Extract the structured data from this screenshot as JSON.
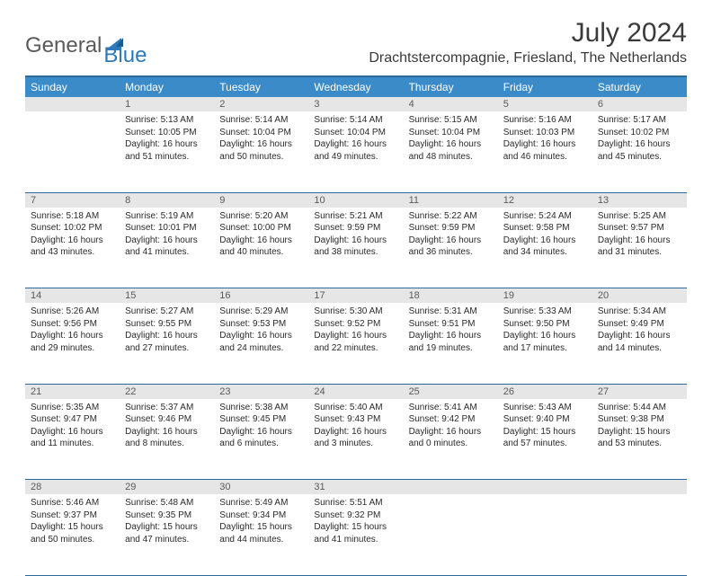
{
  "logo": {
    "text1": "General",
    "text2": "Blue"
  },
  "title": "July 2024",
  "location": "Drachtstercompagnie, Friesland, The Netherlands",
  "colors": {
    "header_bg": "#3b8bc9",
    "header_border": "#2d6a9a",
    "daynum_bg": "#e6e6e6",
    "text": "#2a2a2a",
    "logo_gray": "#5a5a5a",
    "logo_blue": "#2d79b9"
  },
  "weekdays": [
    "Sunday",
    "Monday",
    "Tuesday",
    "Wednesday",
    "Thursday",
    "Friday",
    "Saturday"
  ],
  "weeks": [
    {
      "nums": [
        "",
        "1",
        "2",
        "3",
        "4",
        "5",
        "6"
      ],
      "cells": [
        null,
        {
          "sunrise": "5:13 AM",
          "sunset": "10:05 PM",
          "daylight": "16 hours and 51 minutes."
        },
        {
          "sunrise": "5:14 AM",
          "sunset": "10:04 PM",
          "daylight": "16 hours and 50 minutes."
        },
        {
          "sunrise": "5:14 AM",
          "sunset": "10:04 PM",
          "daylight": "16 hours and 49 minutes."
        },
        {
          "sunrise": "5:15 AM",
          "sunset": "10:04 PM",
          "daylight": "16 hours and 48 minutes."
        },
        {
          "sunrise": "5:16 AM",
          "sunset": "10:03 PM",
          "daylight": "16 hours and 46 minutes."
        },
        {
          "sunrise": "5:17 AM",
          "sunset": "10:02 PM",
          "daylight": "16 hours and 45 minutes."
        }
      ]
    },
    {
      "nums": [
        "7",
        "8",
        "9",
        "10",
        "11",
        "12",
        "13"
      ],
      "cells": [
        {
          "sunrise": "5:18 AM",
          "sunset": "10:02 PM",
          "daylight": "16 hours and 43 minutes."
        },
        {
          "sunrise": "5:19 AM",
          "sunset": "10:01 PM",
          "daylight": "16 hours and 41 minutes."
        },
        {
          "sunrise": "5:20 AM",
          "sunset": "10:00 PM",
          "daylight": "16 hours and 40 minutes."
        },
        {
          "sunrise": "5:21 AM",
          "sunset": "9:59 PM",
          "daylight": "16 hours and 38 minutes."
        },
        {
          "sunrise": "5:22 AM",
          "sunset": "9:59 PM",
          "daylight": "16 hours and 36 minutes."
        },
        {
          "sunrise": "5:24 AM",
          "sunset": "9:58 PM",
          "daylight": "16 hours and 34 minutes."
        },
        {
          "sunrise": "5:25 AM",
          "sunset": "9:57 PM",
          "daylight": "16 hours and 31 minutes."
        }
      ]
    },
    {
      "nums": [
        "14",
        "15",
        "16",
        "17",
        "18",
        "19",
        "20"
      ],
      "cells": [
        {
          "sunrise": "5:26 AM",
          "sunset": "9:56 PM",
          "daylight": "16 hours and 29 minutes."
        },
        {
          "sunrise": "5:27 AM",
          "sunset": "9:55 PM",
          "daylight": "16 hours and 27 minutes."
        },
        {
          "sunrise": "5:29 AM",
          "sunset": "9:53 PM",
          "daylight": "16 hours and 24 minutes."
        },
        {
          "sunrise": "5:30 AM",
          "sunset": "9:52 PM",
          "daylight": "16 hours and 22 minutes."
        },
        {
          "sunrise": "5:31 AM",
          "sunset": "9:51 PM",
          "daylight": "16 hours and 19 minutes."
        },
        {
          "sunrise": "5:33 AM",
          "sunset": "9:50 PM",
          "daylight": "16 hours and 17 minutes."
        },
        {
          "sunrise": "5:34 AM",
          "sunset": "9:49 PM",
          "daylight": "16 hours and 14 minutes."
        }
      ]
    },
    {
      "nums": [
        "21",
        "22",
        "23",
        "24",
        "25",
        "26",
        "27"
      ],
      "cells": [
        {
          "sunrise": "5:35 AM",
          "sunset": "9:47 PM",
          "daylight": "16 hours and 11 minutes."
        },
        {
          "sunrise": "5:37 AM",
          "sunset": "9:46 PM",
          "daylight": "16 hours and 8 minutes."
        },
        {
          "sunrise": "5:38 AM",
          "sunset": "9:45 PM",
          "daylight": "16 hours and 6 minutes."
        },
        {
          "sunrise": "5:40 AM",
          "sunset": "9:43 PM",
          "daylight": "16 hours and 3 minutes."
        },
        {
          "sunrise": "5:41 AM",
          "sunset": "9:42 PM",
          "daylight": "16 hours and 0 minutes."
        },
        {
          "sunrise": "5:43 AM",
          "sunset": "9:40 PM",
          "daylight": "15 hours and 57 minutes."
        },
        {
          "sunrise": "5:44 AM",
          "sunset": "9:38 PM",
          "daylight": "15 hours and 53 minutes."
        }
      ]
    },
    {
      "nums": [
        "28",
        "29",
        "30",
        "31",
        "",
        "",
        ""
      ],
      "cells": [
        {
          "sunrise": "5:46 AM",
          "sunset": "9:37 PM",
          "daylight": "15 hours and 50 minutes."
        },
        {
          "sunrise": "5:48 AM",
          "sunset": "9:35 PM",
          "daylight": "15 hours and 47 minutes."
        },
        {
          "sunrise": "5:49 AM",
          "sunset": "9:34 PM",
          "daylight": "15 hours and 44 minutes."
        },
        {
          "sunrise": "5:51 AM",
          "sunset": "9:32 PM",
          "daylight": "15 hours and 41 minutes."
        },
        null,
        null,
        null
      ]
    }
  ],
  "labels": {
    "sunrise": "Sunrise: ",
    "sunset": "Sunset: ",
    "daylight": "Daylight: "
  }
}
